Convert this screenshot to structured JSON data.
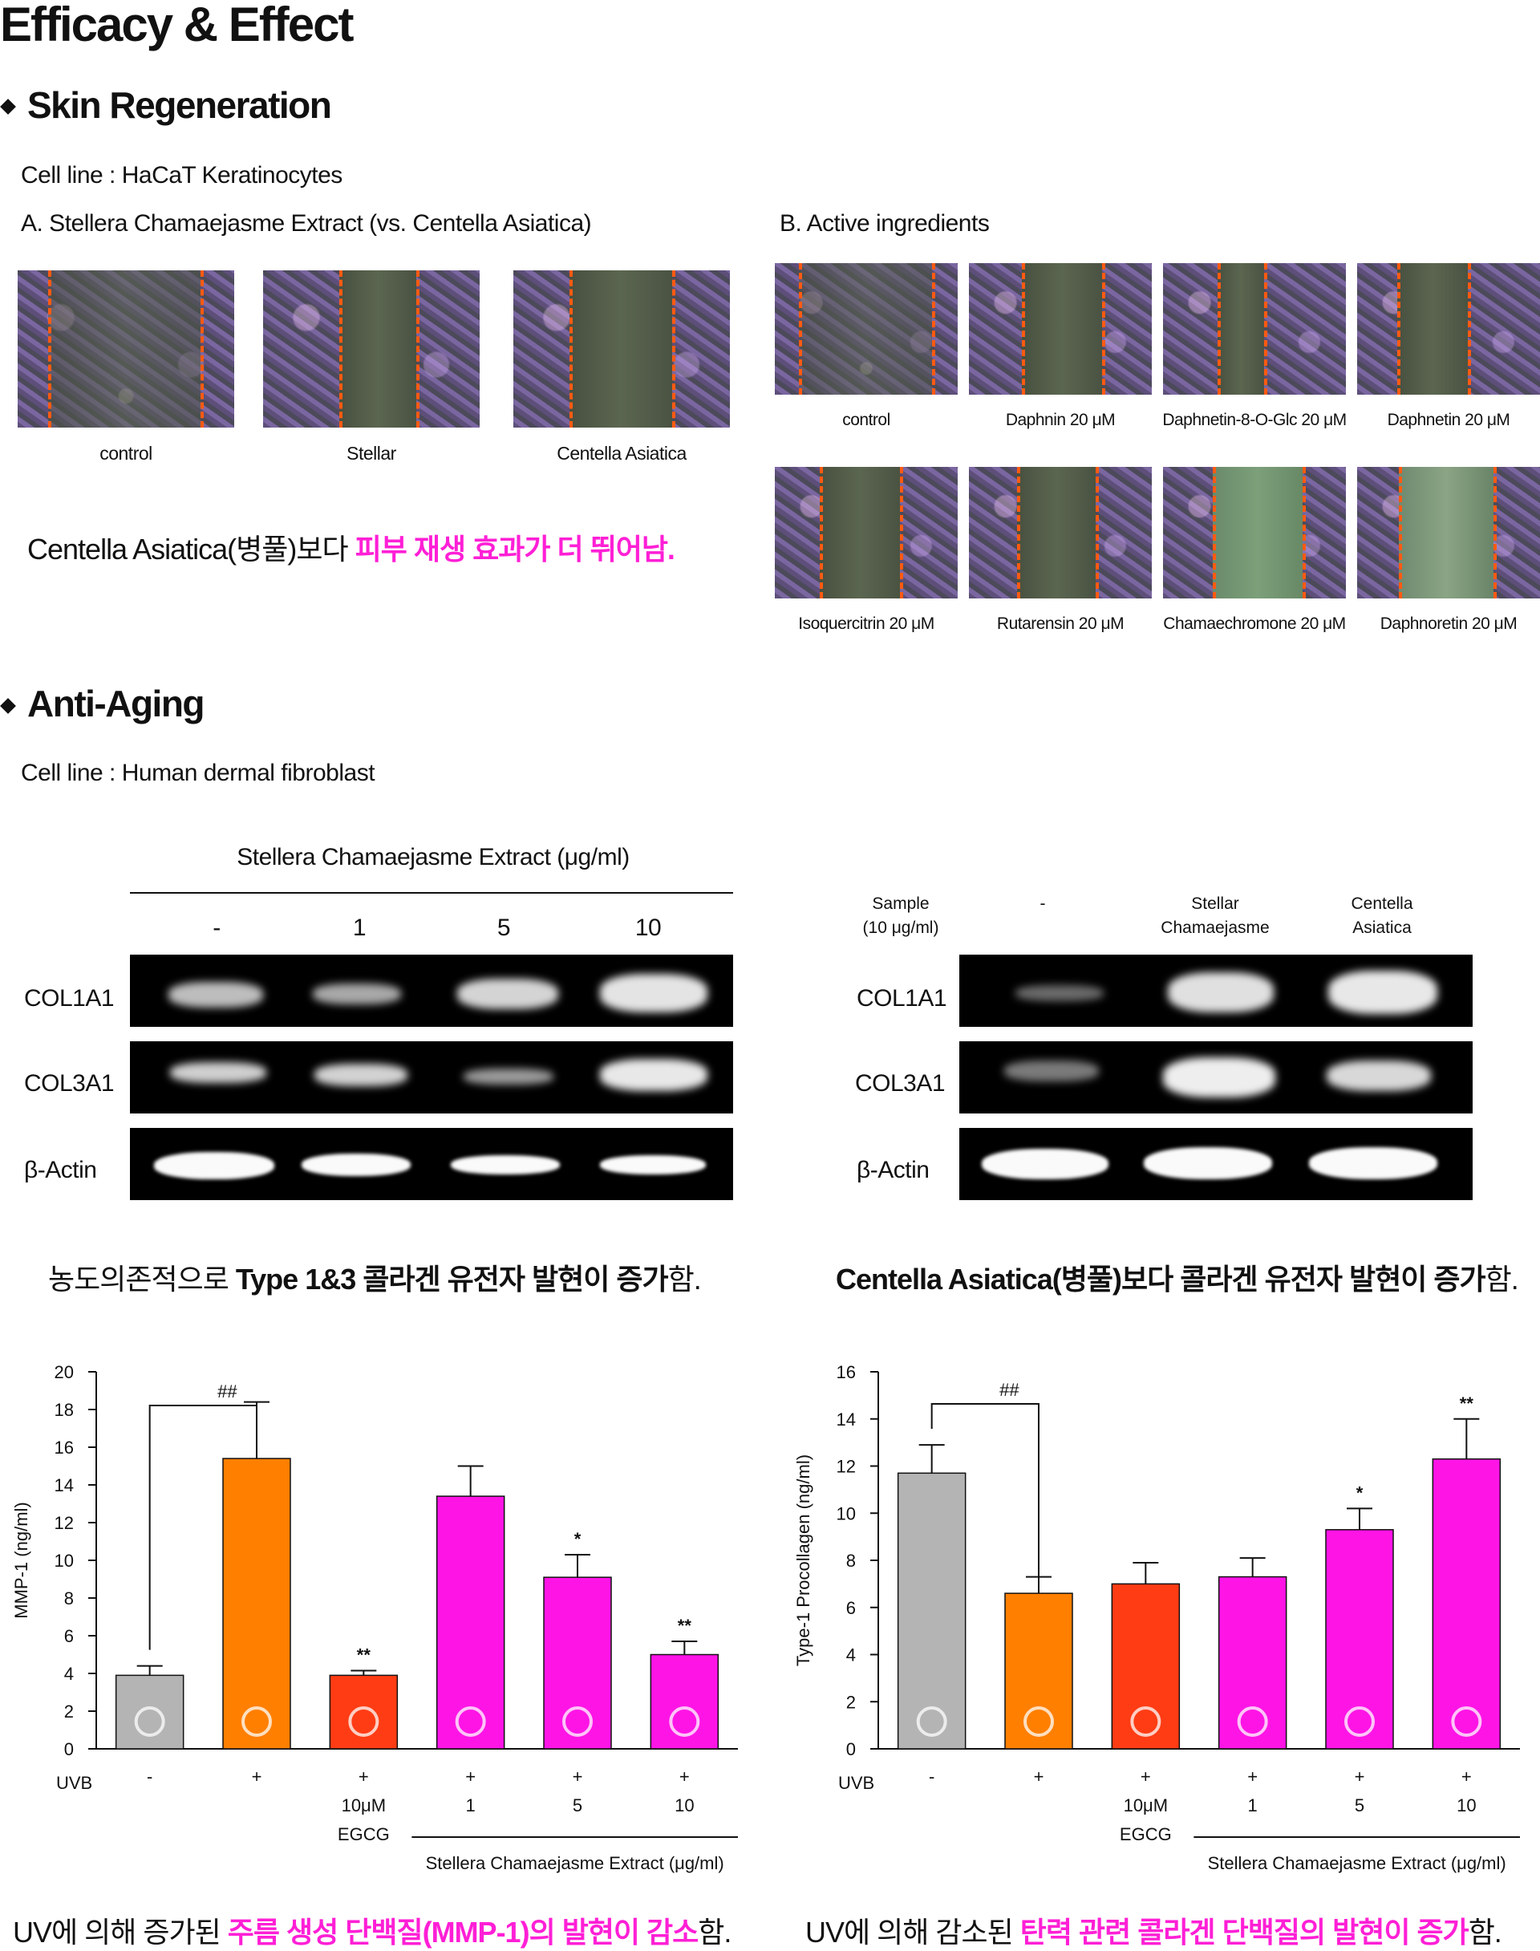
{
  "title": "Efficacy & Effect",
  "sec1": {
    "heading": "Skin Regeneration",
    "cell_line": "Cell line : HaCaT Keratinocytes",
    "a_label": "A. Stellera Chamaejasme Extract (vs. Centella Asiatica)",
    "b_label": "B. Active ingredients",
    "a_images": [
      "control",
      "Stellar",
      "Centella Asiatica"
    ],
    "b_images": [
      "control",
      "Daphnin 20 μM",
      "Daphnetin-8-O-Glc 20 μM",
      "Daphnetin 20 μM",
      "Isoquercitrin 20 μM",
      "Rutarensin 20 μM",
      "Chamaechromone 20 μM",
      "Daphnoretin 20 μM"
    ],
    "result_plain": "Centella Asiatica(병풀)보다 ",
    "result_pink": "피부 재생 효과가 더 뛰어남."
  },
  "sec2": {
    "heading": "Anti-Aging",
    "cell_line": "Cell line : Human dermal fibroblast",
    "gel1": {
      "header": "Stellera Chamaejasme Extract (μg/ml)",
      "lanes": [
        "-",
        "1",
        "5",
        "10"
      ],
      "rows": [
        "COL1A1",
        "COL3A1",
        "β-Actin"
      ]
    },
    "gel2": {
      "sample_label_1": "Sample",
      "sample_label_2": "(10 μg/ml)",
      "lanes": [
        [
          "-",
          ""
        ],
        [
          "Stellar",
          "Chamaejasme"
        ],
        [
          "Centella",
          "Asiatica"
        ]
      ],
      "rows": [
        "COL1A1",
        "COL3A1",
        "β-Actin"
      ]
    },
    "sent_left_plain": "농도의존적으로 ",
    "sent_left_bold": "Type 1&3 콜라겐 유전자 발현이 증가",
    "sent_left_end": "함.",
    "sent_right_bold": "Centella Asiatica(병풀)보다 콜라겐 유전자 발현이 증가",
    "sent_right_end": "함.",
    "bottom_left_plain": "UV에 의해 증가된 ",
    "bottom_left_pink": "주름 생성 단백질(MMP-1)의 발현이 감소",
    "bottom_left_end": "함.",
    "bottom_right_plain": "UV에 의해 감소된 ",
    "bottom_right_pink": "탄력 관련 콜라겐 단백질의 발현이 증가",
    "bottom_right_end": "함."
  },
  "chart_data": [
    {
      "type": "bar",
      "ylabel": "MMP-1 (ng/ml)",
      "xlabel": "Stellera Chamaejasme Extract (μg/ml)",
      "ylim": [
        0,
        20
      ],
      "yticks": [
        0,
        2,
        4,
        6,
        8,
        10,
        12,
        14,
        16,
        18,
        20
      ],
      "row_label": "UVB",
      "categories": [
        {
          "uvb": "-",
          "sub1": "",
          "sub2": ""
        },
        {
          "uvb": "+",
          "sub1": "",
          "sub2": ""
        },
        {
          "uvb": "+",
          "sub1": "10μM",
          "sub2": "EGCG"
        },
        {
          "uvb": "+",
          "sub1": "1",
          "sub2": ""
        },
        {
          "uvb": "+",
          "sub1": "5",
          "sub2": ""
        },
        {
          "uvb": "+",
          "sub1": "10",
          "sub2": ""
        }
      ],
      "values": [
        3.9,
        15.4,
        3.9,
        13.4,
        9.1,
        5.0
      ],
      "errors": [
        0.5,
        3.0,
        0.25,
        1.6,
        1.2,
        0.7
      ],
      "colors": [
        "#b4b4b4",
        "#ff7f00",
        "#ff3c14",
        "#ff14e6",
        "#ff14e6",
        "#ff14e6"
      ],
      "marks": [
        "",
        "",
        "**",
        "",
        "*",
        "**"
      ],
      "bracket": {
        "from": 0,
        "to": 1,
        "label": "##"
      }
    },
    {
      "type": "bar",
      "ylabel": "Type-1 Procollagen (ng/ml)",
      "xlabel": "Stellera Chamaejasme Extract (μg/ml)",
      "ylim": [
        0,
        16
      ],
      "yticks": [
        0,
        2,
        4,
        6,
        8,
        10,
        12,
        14,
        16
      ],
      "row_label": "UVB",
      "categories": [
        {
          "uvb": "-",
          "sub1": "",
          "sub2": ""
        },
        {
          "uvb": "+",
          "sub1": "",
          "sub2": ""
        },
        {
          "uvb": "+",
          "sub1": "10μM",
          "sub2": "EGCG"
        },
        {
          "uvb": "+",
          "sub1": "1",
          "sub2": ""
        },
        {
          "uvb": "+",
          "sub1": "5",
          "sub2": ""
        },
        {
          "uvb": "+",
          "sub1": "10",
          "sub2": ""
        }
      ],
      "values": [
        11.7,
        6.6,
        7.0,
        7.3,
        9.3,
        12.3
      ],
      "errors": [
        1.2,
        0.7,
        0.9,
        0.8,
        0.9,
        1.7
      ],
      "colors": [
        "#b4b4b4",
        "#ff7f00",
        "#ff3c14",
        "#ff14e6",
        "#ff14e6",
        "#ff14e6"
      ],
      "marks": [
        "",
        "",
        "",
        "",
        "*",
        "**"
      ],
      "bracket": {
        "from": 0,
        "to": 1,
        "label": "##"
      }
    }
  ]
}
